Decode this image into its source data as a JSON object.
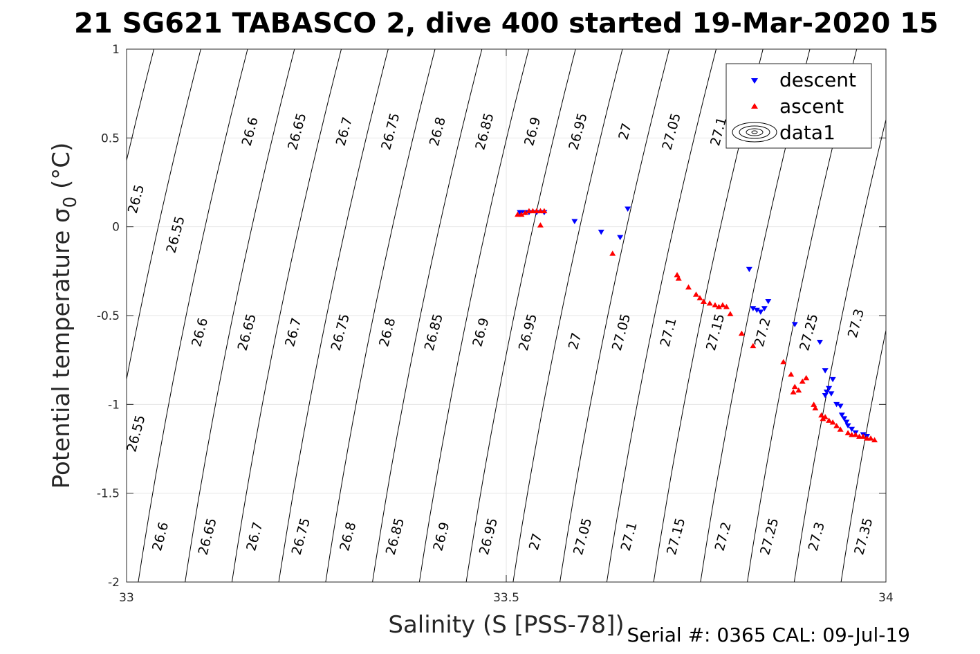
{
  "title": "21 SG621 TABASCO 2, dive 400 started 19-Mar-2020 15",
  "footer": "Serial #: 0365  CAL: 09-Jul-19",
  "chart_data": {
    "type": "scatter",
    "title": "21 SG621 TABASCO 2, dive 400 started 19-Mar-2020 15",
    "xlabel": "Salinity (S [PSS-78])",
    "ylabel": "Potential temperature σ 0 (°C)",
    "ylabel_main": "Potential temperature ",
    "ylabel_sigma": "σ",
    "ylabel_sub": "0",
    "ylabel_unit": " (°C)",
    "xlim": [
      33,
      34
    ],
    "ylim": [
      -2,
      1
    ],
    "xticks": [
      "33",
      "33.5",
      "34"
    ],
    "yticks": [
      "1",
      "0.5",
      "0",
      "-0.5",
      "-1",
      "-1.5",
      "-2"
    ],
    "grid": true,
    "legend_position": "top-right",
    "legend": [
      "descent",
      "ascent",
      "data1"
    ],
    "colors": {
      "descent": "#0000ff",
      "ascent": "#ff0000",
      "contour": "#000000",
      "grid": "#e6e6e6"
    },
    "contour_labels": [
      {
        "text": "26.5",
        "s": 33.018,
        "t": 0.15
      },
      {
        "text": "26.6",
        "s": 33.168,
        "t": 0.53
      },
      {
        "text": "26.65",
        "s": 33.23,
        "t": 0.53
      },
      {
        "text": "26.7",
        "s": 33.292,
        "t": 0.53
      },
      {
        "text": "26.75",
        "s": 33.353,
        "t": 0.53
      },
      {
        "text": "26.8",
        "s": 33.415,
        "t": 0.53
      },
      {
        "text": "26.85",
        "s": 33.477,
        "t": 0.53
      },
      {
        "text": "26.9",
        "s": 33.54,
        "t": 0.53
      },
      {
        "text": "26.95",
        "s": 33.6,
        "t": 0.53
      },
      {
        "text": "27",
        "s": 33.662,
        "t": 0.53
      },
      {
        "text": "27.05",
        "s": 33.723,
        "t": 0.53
      },
      {
        "text": "27.1",
        "s": 33.785,
        "t": 0.53
      },
      {
        "text": "26.55",
        "s": 33.07,
        "t": -0.05
      },
      {
        "text": "26.6",
        "s": 33.102,
        "t": -0.6
      },
      {
        "text": "26.65",
        "s": 33.164,
        "t": -0.6
      },
      {
        "text": "26.7",
        "s": 33.225,
        "t": -0.6
      },
      {
        "text": "26.75",
        "s": 33.287,
        "t": -0.6
      },
      {
        "text": "26.8",
        "s": 33.349,
        "t": -0.6
      },
      {
        "text": "26.85",
        "s": 33.41,
        "t": -0.6
      },
      {
        "text": "26.9",
        "s": 33.472,
        "t": -0.6
      },
      {
        "text": "26.95",
        "s": 33.534,
        "t": -0.6
      },
      {
        "text": "27",
        "s": 33.596,
        "t": -0.65
      },
      {
        "text": "27.05",
        "s": 33.657,
        "t": -0.6
      },
      {
        "text": "27.1",
        "s": 33.719,
        "t": -0.6
      },
      {
        "text": "27.15",
        "s": 33.781,
        "t": -0.6
      },
      {
        "text": "27.2",
        "s": 33.843,
        "t": -0.6
      },
      {
        "text": "27.25",
        "s": 33.904,
        "t": -0.6
      },
      {
        "text": "27.3",
        "s": 33.966,
        "t": -0.55
      },
      {
        "text": "26.55",
        "s": 33.018,
        "t": -1.17
      },
      {
        "text": "26.6",
        "s": 33.05,
        "t": -1.75
      },
      {
        "text": "26.65",
        "s": 33.112,
        "t": -1.75
      },
      {
        "text": "26.7",
        "s": 33.174,
        "t": -1.75
      },
      {
        "text": "26.75",
        "s": 33.235,
        "t": -1.75
      },
      {
        "text": "26.8",
        "s": 33.297,
        "t": -1.75
      },
      {
        "text": "26.85",
        "s": 33.359,
        "t": -1.75
      },
      {
        "text": "26.9",
        "s": 33.42,
        "t": -1.75
      },
      {
        "text": "26.95",
        "s": 33.482,
        "t": -1.75
      },
      {
        "text": "27",
        "s": 33.544,
        "t": -1.78
      },
      {
        "text": "27.05",
        "s": 33.606,
        "t": -1.75
      },
      {
        "text": "27.1",
        "s": 33.667,
        "t": -1.75
      },
      {
        "text": "27.15",
        "s": 33.729,
        "t": -1.75
      },
      {
        "text": "27.2",
        "s": 33.791,
        "t": -1.75
      },
      {
        "text": "27.25",
        "s": 33.852,
        "t": -1.75
      },
      {
        "text": "27.3",
        "s": 33.914,
        "t": -1.75
      },
      {
        "text": "27.35",
        "s": 33.976,
        "t": -1.75
      }
    ],
    "series": [
      {
        "name": "descent",
        "marker": "triangle-down",
        "points": [
          [
            33.518,
            0.08
          ],
          [
            33.52,
            0.08
          ],
          [
            33.525,
            0.08
          ],
          [
            33.53,
            0.08
          ],
          [
            33.54,
            0.08
          ],
          [
            33.55,
            0.08
          ],
          [
            33.59,
            0.03
          ],
          [
            33.625,
            -0.03
          ],
          [
            33.65,
            -0.06
          ],
          [
            33.66,
            0.1
          ],
          [
            33.82,
            -0.24
          ],
          [
            33.825,
            -0.46
          ],
          [
            33.83,
            -0.47
          ],
          [
            33.835,
            -0.48
          ],
          [
            33.84,
            -0.46
          ],
          [
            33.845,
            -0.42
          ],
          [
            33.88,
            -0.55
          ],
          [
            33.913,
            -0.65
          ],
          [
            33.92,
            -0.81
          ],
          [
            33.93,
            -0.86
          ],
          [
            33.925,
            -0.91
          ],
          [
            33.92,
            -0.95
          ],
          [
            33.922,
            -0.93
          ],
          [
            33.928,
            -0.94
          ],
          [
            33.935,
            -1.0
          ],
          [
            33.94,
            -1.01
          ],
          [
            33.942,
            -1.06
          ],
          [
            33.945,
            -1.08
          ],
          [
            33.948,
            -1.1
          ],
          [
            33.95,
            -1.12
          ],
          [
            33.955,
            -1.14
          ],
          [
            33.96,
            -1.16
          ],
          [
            33.97,
            -1.17
          ],
          [
            33.975,
            -1.18
          ]
        ]
      },
      {
        "name": "ascent",
        "marker": "triangle-up",
        "points": [
          [
            33.515,
            0.07
          ],
          [
            33.52,
            0.07
          ],
          [
            33.525,
            0.08
          ],
          [
            33.53,
            0.09
          ],
          [
            33.535,
            0.09
          ],
          [
            33.54,
            0.09
          ],
          [
            33.545,
            0.09
          ],
          [
            33.55,
            0.09
          ],
          [
            33.545,
            0.01
          ],
          [
            33.64,
            -0.15
          ],
          [
            33.725,
            -0.27
          ],
          [
            33.727,
            -0.29
          ],
          [
            33.74,
            -0.34
          ],
          [
            33.75,
            -0.38
          ],
          [
            33.755,
            -0.4
          ],
          [
            33.76,
            -0.42
          ],
          [
            33.768,
            -0.43
          ],
          [
            33.775,
            -0.44
          ],
          [
            33.78,
            -0.45
          ],
          [
            33.785,
            -0.44
          ],
          [
            33.79,
            -0.45
          ],
          [
            33.795,
            -0.49
          ],
          [
            33.81,
            -0.6
          ],
          [
            33.825,
            -0.67
          ],
          [
            33.865,
            -0.76
          ],
          [
            33.875,
            -0.83
          ],
          [
            33.88,
            -0.9
          ],
          [
            33.878,
            -0.93
          ],
          [
            33.885,
            -0.92
          ],
          [
            33.89,
            -0.87
          ],
          [
            33.895,
            -0.85
          ],
          [
            33.905,
            -1.0
          ],
          [
            33.907,
            -1.02
          ],
          [
            33.915,
            -1.06
          ],
          [
            33.917,
            -1.08
          ],
          [
            33.92,
            -1.07
          ],
          [
            33.925,
            -1.09
          ],
          [
            33.93,
            -1.1
          ],
          [
            33.935,
            -1.12
          ],
          [
            33.94,
            -1.14
          ],
          [
            33.95,
            -1.16
          ],
          [
            33.955,
            -1.17
          ],
          [
            33.96,
            -1.17
          ],
          [
            33.965,
            -1.18
          ],
          [
            33.97,
            -1.18
          ],
          [
            33.975,
            -1.19
          ],
          [
            33.98,
            -1.19
          ],
          [
            33.985,
            -1.2
          ]
        ]
      }
    ]
  }
}
